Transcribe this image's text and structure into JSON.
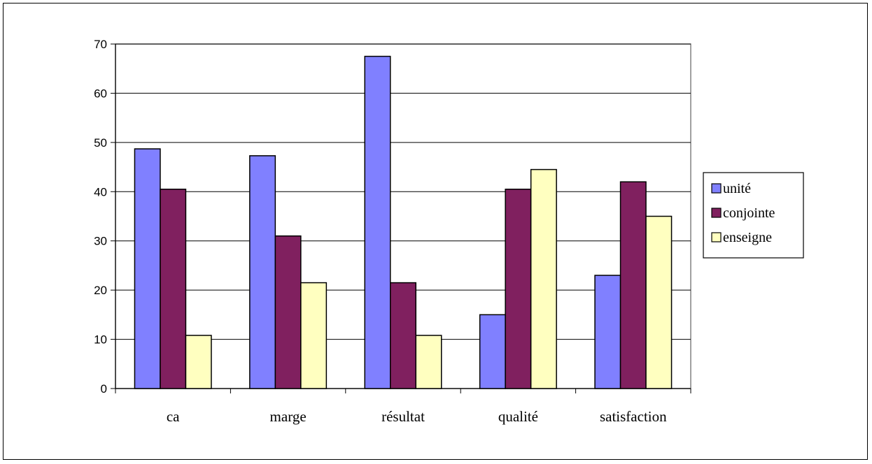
{
  "chart_data": {
    "type": "bar",
    "categories": [
      "ca",
      "marge",
      "résultat",
      "qualité",
      "satisfaction"
    ],
    "series": [
      {
        "name": "unité",
        "color": "#8080FF",
        "values": [
          48.7,
          47.3,
          67.5,
          15.0,
          23.0
        ]
      },
      {
        "name": "conjointe",
        "color": "#80205F",
        "values": [
          40.5,
          31.0,
          21.5,
          40.5,
          42.0
        ]
      },
      {
        "name": "enseigne",
        "color": "#FFFFC0",
        "values": [
          10.8,
          21.5,
          10.8,
          44.5,
          35.0
        ]
      }
    ],
    "yticks": [
      0,
      10,
      20,
      30,
      40,
      50,
      60,
      70
    ],
    "ylim": [
      0,
      70
    ],
    "grid": true,
    "legend": "right"
  }
}
